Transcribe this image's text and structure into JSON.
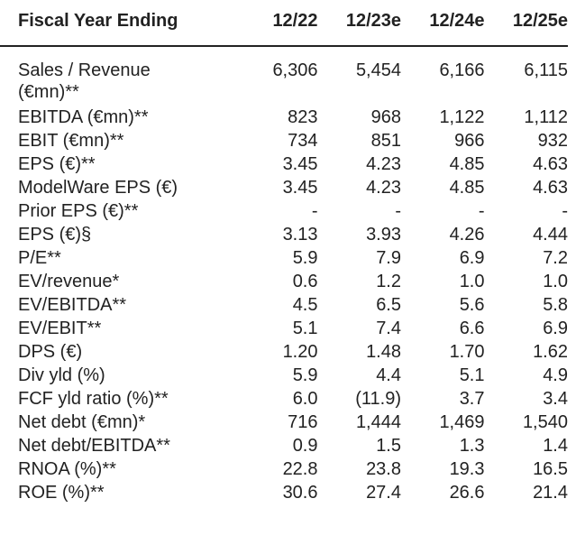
{
  "header": {
    "label": "Fiscal Year Ending",
    "years": [
      "12/22",
      "12/23e",
      "12/24e",
      "12/25e"
    ]
  },
  "rows": [
    {
      "label": "Sales / Revenue (€mn)**",
      "values": [
        "6,306",
        "5,454",
        "6,166",
        "6,115"
      ]
    },
    {
      "label": "EBITDA (€mn)**",
      "values": [
        "823",
        "968",
        "1,122",
        "1,112"
      ]
    },
    {
      "label": "EBIT (€mn)**",
      "values": [
        "734",
        "851",
        "966",
        "932"
      ]
    },
    {
      "label": "EPS (€)**",
      "values": [
        "3.45",
        "4.23",
        "4.85",
        "4.63"
      ]
    },
    {
      "label": "ModelWare EPS (€)",
      "values": [
        "3.45",
        "4.23",
        "4.85",
        "4.63"
      ]
    },
    {
      "label": "Prior EPS (€)**",
      "values": [
        "-",
        "-",
        "-",
        "-"
      ]
    },
    {
      "label": "EPS (€)§",
      "values": [
        "3.13",
        "3.93",
        "4.26",
        "4.44"
      ]
    },
    {
      "label": "P/E**",
      "values": [
        "5.9",
        "7.9",
        "6.9",
        "7.2"
      ]
    },
    {
      "label": "EV/revenue*",
      "values": [
        "0.6",
        "1.2",
        "1.0",
        "1.0"
      ]
    },
    {
      "label": "EV/EBITDA**",
      "values": [
        "4.5",
        "6.5",
        "5.6",
        "5.8"
      ]
    },
    {
      "label": "EV/EBIT**",
      "values": [
        "5.1",
        "7.4",
        "6.6",
        "6.9"
      ]
    },
    {
      "label": "DPS (€)",
      "values": [
        "1.20",
        "1.48",
        "1.70",
        "1.62"
      ]
    },
    {
      "label": "Div yld (%)",
      "values": [
        "5.9",
        "4.4",
        "5.1",
        "4.9"
      ]
    },
    {
      "label": "FCF yld ratio (%)**",
      "values": [
        "6.0",
        "(11.9)",
        "3.7",
        "3.4"
      ]
    },
    {
      "label": "Net debt (€mn)*",
      "values": [
        "716",
        "1,444",
        "1,469",
        "1,540"
      ]
    },
    {
      "label": "Net debt/EBITDA**",
      "values": [
        "0.9",
        "1.5",
        "1.3",
        "1.4"
      ]
    },
    {
      "label": "RNOA (%)**",
      "values": [
        "22.8",
        "23.8",
        "19.3",
        "16.5"
      ]
    },
    {
      "label": "ROE (%)**",
      "values": [
        "30.6",
        "27.4",
        "26.6",
        "21.4"
      ]
    }
  ]
}
